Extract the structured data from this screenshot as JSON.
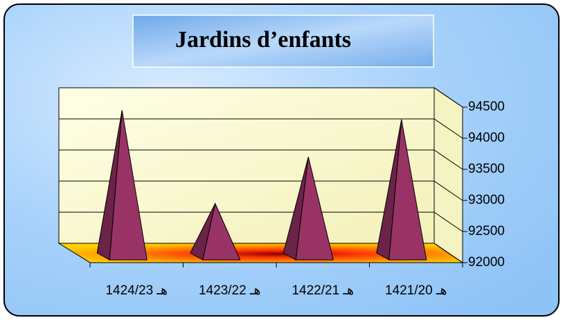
{
  "chart_data": {
    "type": "pyramid",
    "title": "Jardins d’enfants",
    "categories": [
      "هـ 1424/23",
      "هـ 1423/22",
      "هـ 1422/21",
      "هـ 1421/20"
    ],
    "values": [
      94450,
      92950,
      93700,
      94300
    ],
    "color": "#993366",
    "ylim": [
      92000,
      94500
    ],
    "yticks": [
      92000,
      92500,
      93000,
      93500,
      94000,
      94500
    ],
    "grid": true
  }
}
